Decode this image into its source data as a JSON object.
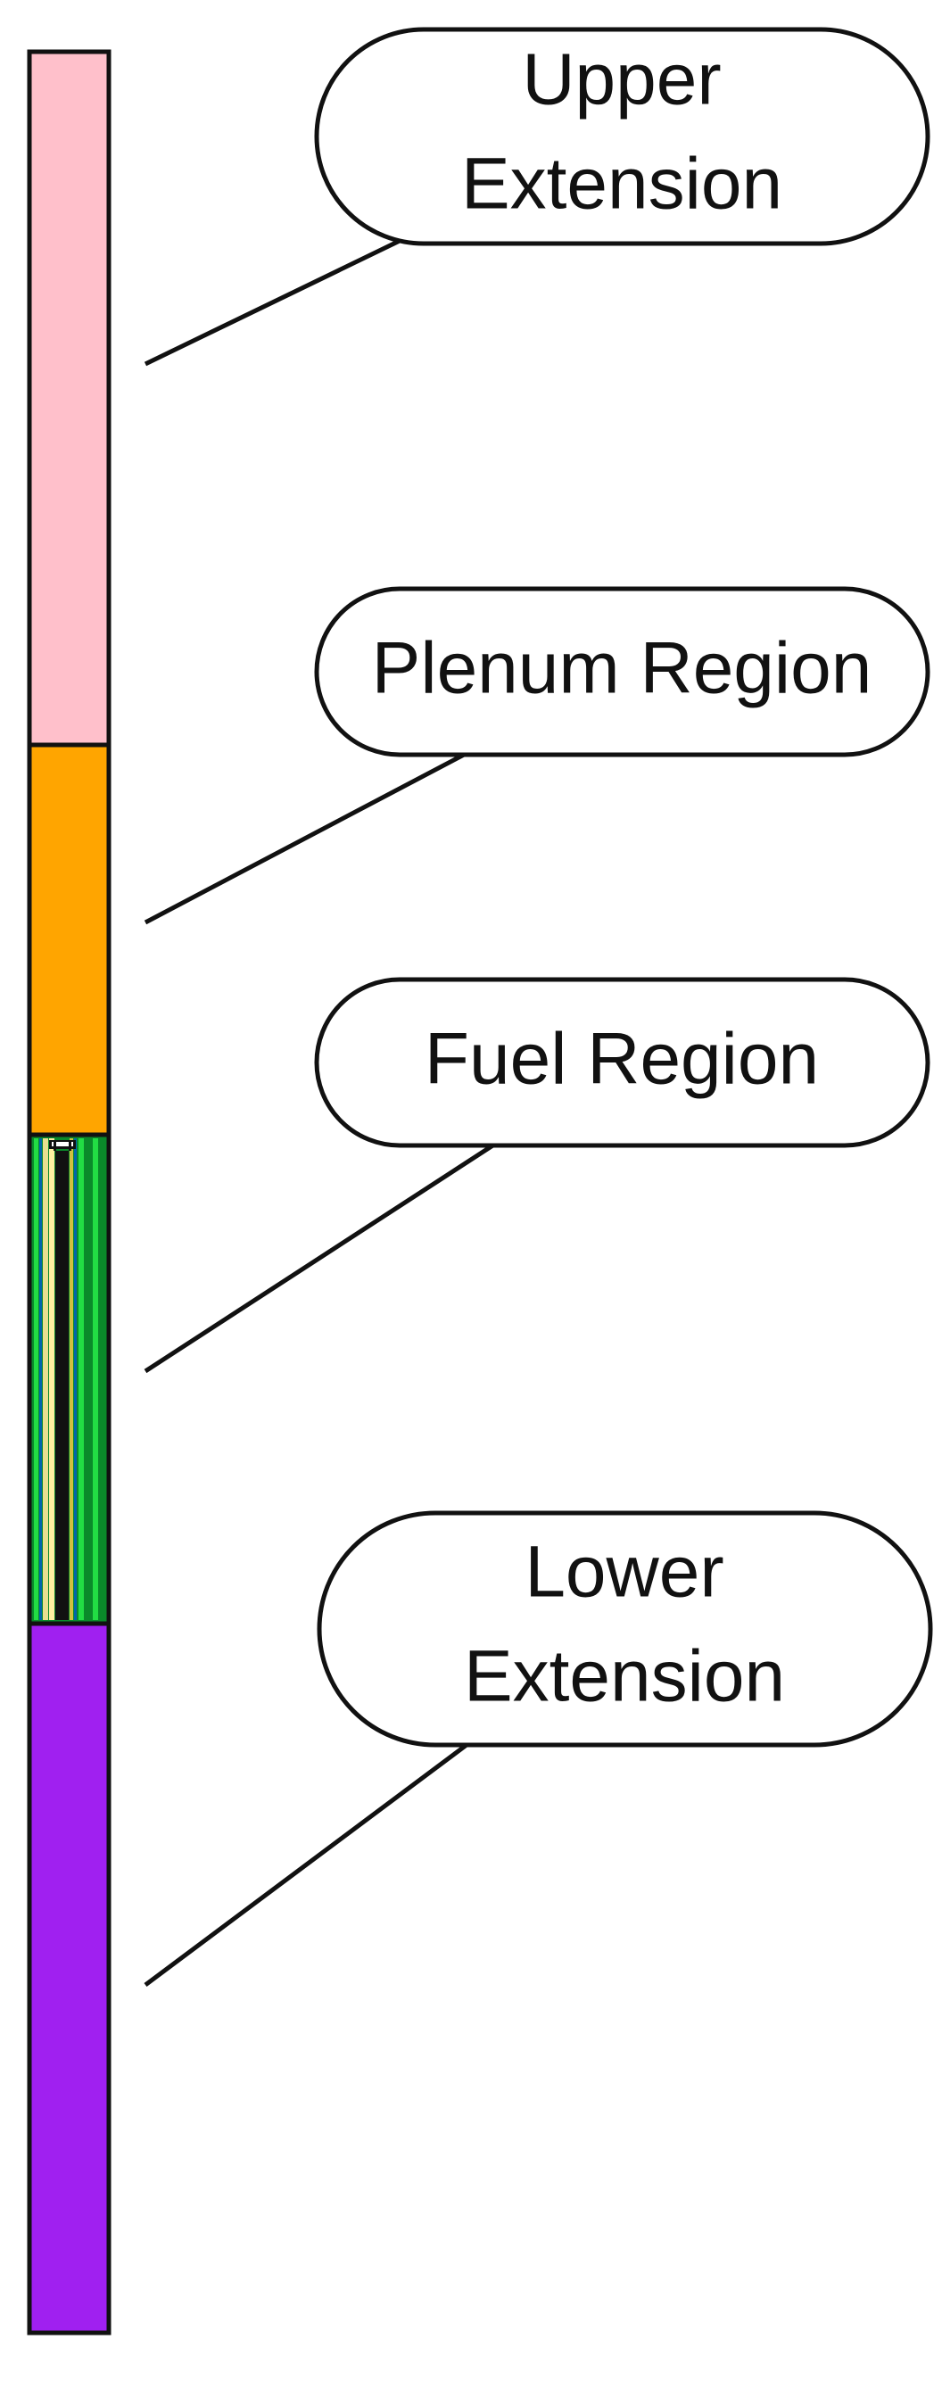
{
  "colors": {
    "upper_extension": "#ffc0cb",
    "plenum": "#ffa500",
    "fuel_background": "#0a8a2a",
    "fuel_stripe": "#22dd44",
    "lower_extension": "#a020f0",
    "outline": "#111111"
  },
  "labels": {
    "upper_extension": {
      "lines": [
        "Upper",
        "Extension"
      ]
    },
    "plenum": {
      "lines": [
        "Plenum Region"
      ]
    },
    "fuel": {
      "lines": [
        "Fuel Region"
      ]
    },
    "lower_extension": {
      "lines": [
        "Lower",
        "Extension"
      ]
    }
  }
}
